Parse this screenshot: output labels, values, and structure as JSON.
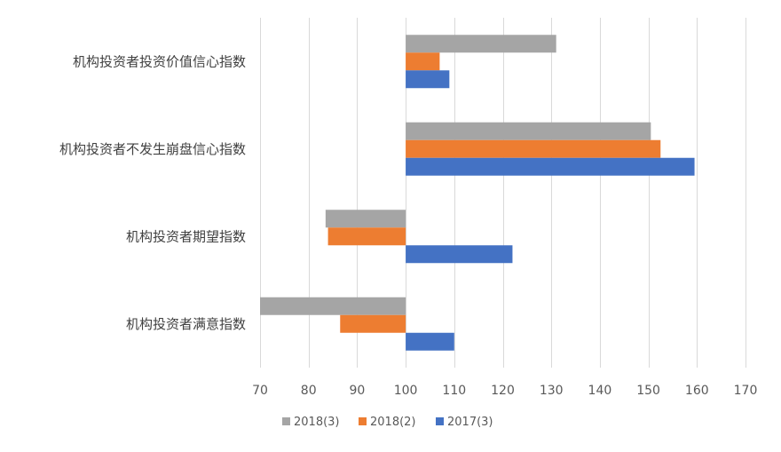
{
  "chart_data": {
    "type": "bar",
    "orientation": "horizontal",
    "baseline": 100,
    "categories": [
      "机构投资者满意指数",
      "机构投资者期望指数",
      "机构投资者不发生崩盘信心指数",
      "机构投资者投资价值信心指数"
    ],
    "series": [
      {
        "name": "2017(3)",
        "color": "#4472c4",
        "values": [
          110,
          122,
          159.5,
          109
        ]
      },
      {
        "name": "2018(2)",
        "color": "#ed7d31",
        "values": [
          86.5,
          84,
          152.5,
          107
        ]
      },
      {
        "name": "2018(3)",
        "color": "#a5a5a5",
        "values": [
          70,
          83.5,
          150.5,
          131
        ]
      }
    ],
    "xlim": [
      70,
      170
    ],
    "xticks": [
      70,
      80,
      90,
      100,
      110,
      120,
      130,
      140,
      150,
      160,
      170
    ],
    "grid": true,
    "legend": {
      "position": "bottom",
      "order": [
        "2018(3)",
        "2018(2)",
        "2017(3)"
      ]
    }
  }
}
